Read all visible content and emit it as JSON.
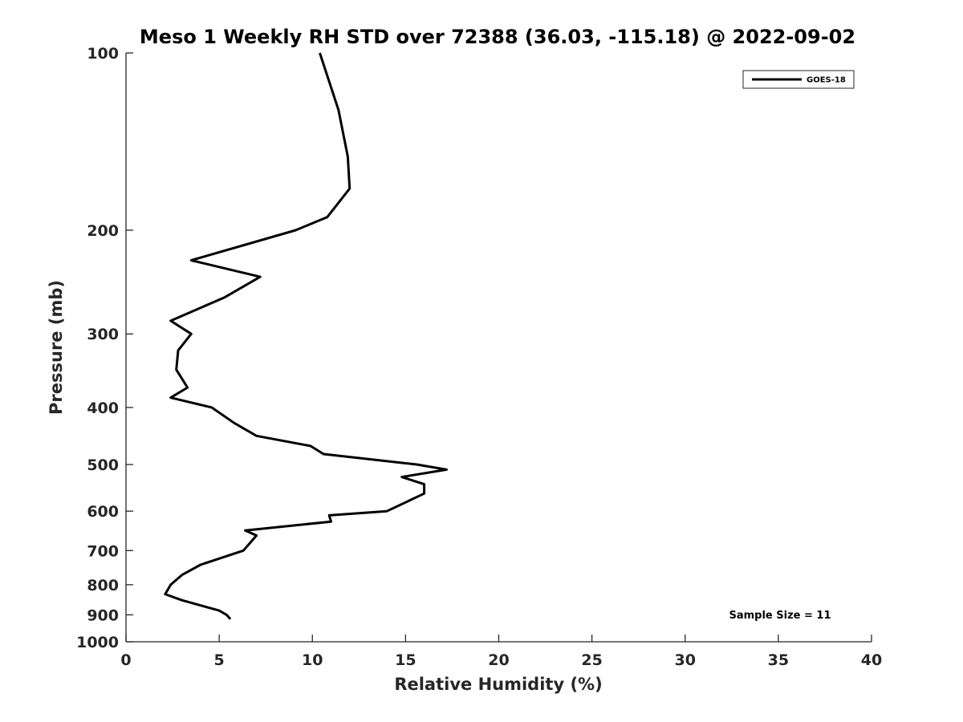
{
  "chart_data": {
    "type": "line",
    "title": "Meso 1 Weekly RH STD over 72388 (36.03, -115.18) @ 2022-09-02",
    "xlabel": "Relative Humidity (%)",
    "ylabel": "Pressure (mb)",
    "xlim": [
      0,
      40
    ],
    "ylim": [
      100,
      1000
    ],
    "y_scale": "log",
    "y_reversed": true,
    "x_ticks": [
      0,
      5,
      10,
      15,
      20,
      25,
      30,
      35,
      40
    ],
    "y_ticks": [
      100,
      200,
      300,
      400,
      500,
      600,
      700,
      800,
      900,
      1000
    ],
    "grid": false,
    "legend_position": "top-right",
    "annotation": "Sample Size = 11",
    "series": [
      {
        "name": "GOES-18",
        "color": "#000000",
        "points": [
          [
            10.4,
            100
          ],
          [
            11.4,
            125
          ],
          [
            11.9,
            150
          ],
          [
            12.0,
            170
          ],
          [
            10.8,
            190
          ],
          [
            9.1,
            200
          ],
          [
            3.5,
            225
          ],
          [
            7.2,
            240
          ],
          [
            5.3,
            260
          ],
          [
            2.4,
            285
          ],
          [
            3.5,
            300
          ],
          [
            2.8,
            320
          ],
          [
            2.7,
            345
          ],
          [
            3.3,
            370
          ],
          [
            2.4,
            385
          ],
          [
            4.6,
            400
          ],
          [
            5.8,
            425
          ],
          [
            7.0,
            447
          ],
          [
            9.9,
            465
          ],
          [
            10.6,
            480
          ],
          [
            15.6,
            500
          ],
          [
            17.2,
            510
          ],
          [
            14.8,
            525
          ],
          [
            16.0,
            540
          ],
          [
            16.0,
            560
          ],
          [
            14.0,
            600
          ],
          [
            10.9,
            610
          ],
          [
            11.0,
            625
          ],
          [
            6.4,
            647
          ],
          [
            7.0,
            660
          ],
          [
            6.3,
            700
          ],
          [
            4.0,
            740
          ],
          [
            3.0,
            770
          ],
          [
            2.4,
            800
          ],
          [
            2.1,
            830
          ],
          [
            3.0,
            850
          ],
          [
            5.0,
            885
          ],
          [
            5.4,
            900
          ],
          [
            5.6,
            915
          ]
        ]
      }
    ]
  }
}
